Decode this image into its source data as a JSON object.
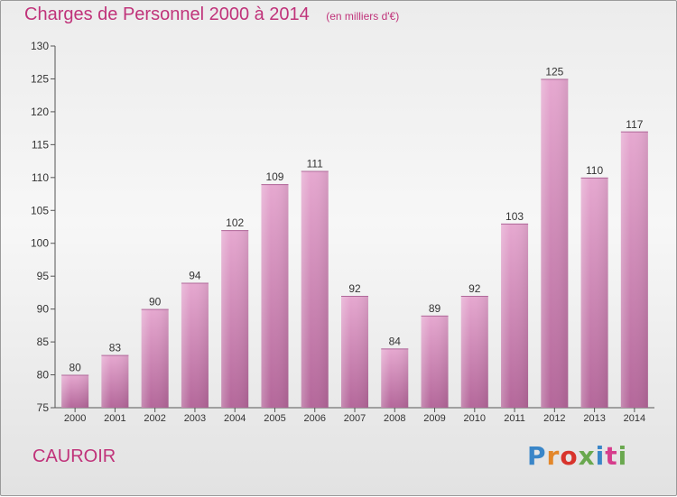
{
  "header": {
    "title": "Charges de Personnel 2000 à 2014",
    "subtitle": "(en milliers d'€)"
  },
  "footer": {
    "commune": "CAUROIR",
    "logo": {
      "text": "Proxiti",
      "letter_colors": [
        "#3a86c8",
        "#e3872a",
        "#d8342c",
        "#6aa84f",
        "#3a86c8",
        "#d63d8c",
        "#6aa84f"
      ]
    }
  },
  "colors": {
    "bar": "#d98fbe",
    "title": "#c0337a"
  },
  "chart_data": {
    "type": "bar",
    "title": "Charges de Personnel 2000 à 2014",
    "subtitle": "(en milliers d'€)",
    "categories": [
      "2000",
      "2001",
      "2002",
      "2003",
      "2004",
      "2005",
      "2006",
      "2007",
      "2008",
      "2009",
      "2010",
      "2011",
      "2012",
      "2013",
      "2014"
    ],
    "values": [
      80,
      83,
      90,
      94,
      102,
      109,
      111,
      92,
      84,
      89,
      92,
      103,
      125,
      110,
      117
    ],
    "data_labels": [
      "80",
      "83",
      "90",
      "94",
      "102",
      "109",
      "111",
      "92",
      "84",
      "89",
      "92",
      "103",
      "125",
      "110",
      "117"
    ],
    "ylim": [
      75,
      130
    ],
    "yticks": [
      75,
      80,
      85,
      90,
      95,
      100,
      105,
      110,
      115,
      120,
      125,
      130
    ],
    "grid": false,
    "xlabel": "",
    "ylabel": ""
  }
}
